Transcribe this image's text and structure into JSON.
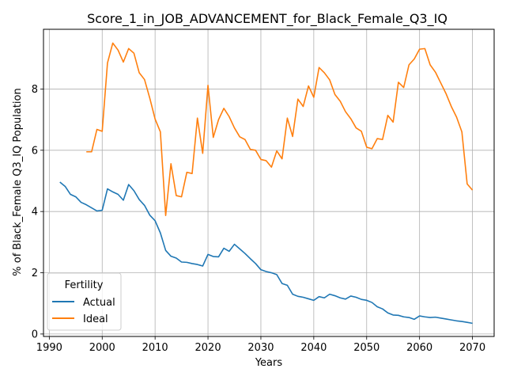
{
  "chart_data": {
    "type": "line",
    "title": "Score_1_in_JOB_ADVANCEMENT_for_Black_Female_Q3_IQ",
    "xlabel": "Years",
    "ylabel": "% of Black_Female Q3_IQ Population",
    "xlim": [
      1988.9,
      2074.1
    ],
    "ylim": [
      -0.08,
      9.95
    ],
    "xticks": [
      1990,
      2000,
      2010,
      2020,
      2030,
      2040,
      2050,
      2060,
      2070
    ],
    "yticks": [
      0,
      2,
      4,
      6,
      8
    ],
    "grid": true,
    "legend": {
      "title": "Fertility",
      "placement": "lower-left"
    },
    "colors": {
      "Actual": "#1f77b4",
      "Ideal": "#ff7f0e"
    },
    "series": [
      {
        "name": "Actual",
        "x": [
          1992,
          1993,
          1994,
          1995,
          1996,
          1997,
          1998,
          1999,
          2000,
          2001,
          2002,
          2003,
          2004,
          2005,
          2006,
          2007,
          2008,
          2009,
          2010,
          2011,
          2012,
          2013,
          2014,
          2015,
          2016,
          2017,
          2018,
          2019,
          2020,
          2021,
          2022,
          2023,
          2024,
          2025,
          2026,
          2027,
          2028,
          2029,
          2030,
          2031,
          2032,
          2033,
          2034,
          2035,
          2036,
          2037,
          2038,
          2039,
          2040,
          2041,
          2042,
          2043,
          2044,
          2045,
          2046,
          2047,
          2048,
          2049,
          2050,
          2051,
          2052,
          2053,
          2054,
          2055,
          2056,
          2057,
          2058,
          2059,
          2060,
          2061,
          2062,
          2063,
          2064,
          2065,
          2066,
          2067,
          2068,
          2069,
          2070
        ],
        "values": [
          4.96,
          4.82,
          4.56,
          4.48,
          4.3,
          4.22,
          4.12,
          4.02,
          4.04,
          4.74,
          4.64,
          4.56,
          4.37,
          4.88,
          4.68,
          4.39,
          4.2,
          3.88,
          3.7,
          3.3,
          2.73,
          2.54,
          2.48,
          2.35,
          2.34,
          2.3,
          2.27,
          2.22,
          2.6,
          2.53,
          2.52,
          2.8,
          2.7,
          2.93,
          2.78,
          2.63,
          2.46,
          2.3,
          2.1,
          2.04,
          2.0,
          1.94,
          1.65,
          1.59,
          1.3,
          1.23,
          1.2,
          1.15,
          1.1,
          1.22,
          1.18,
          1.3,
          1.25,
          1.18,
          1.14,
          1.24,
          1.2,
          1.13,
          1.1,
          1.03,
          0.89,
          0.82,
          0.69,
          0.62,
          0.61,
          0.56,
          0.54,
          0.48,
          0.59,
          0.56,
          0.54,
          0.55,
          0.52,
          0.49,
          0.46,
          0.43,
          0.41,
          0.38,
          0.35
        ]
      },
      {
        "name": "Ideal",
        "x": [
          1997,
          1998,
          1999,
          2000,
          2001,
          2002,
          2003,
          2004,
          2005,
          2006,
          2007,
          2008,
          2009,
          2010,
          2011,
          2012,
          2013,
          2014,
          2015,
          2016,
          2017,
          2018,
          2019,
          2020,
          2021,
          2022,
          2023,
          2024,
          2025,
          2026,
          2027,
          2028,
          2029,
          2030,
          2031,
          2032,
          2033,
          2034,
          2035,
          2036,
          2037,
          2038,
          2039,
          2040,
          2041,
          2042,
          2043,
          2044,
          2045,
          2046,
          2047,
          2048,
          2049,
          2050,
          2051,
          2052,
          2053,
          2054,
          2055,
          2056,
          2057,
          2058,
          2059,
          2060,
          2061,
          2062,
          2063,
          2064,
          2065,
          2066,
          2067,
          2068,
          2069,
          2070
        ],
        "values": [
          5.95,
          5.95,
          6.68,
          6.62,
          8.85,
          9.5,
          9.27,
          8.88,
          9.32,
          9.17,
          8.53,
          8.31,
          7.7,
          7.02,
          6.6,
          3.87,
          5.56,
          4.52,
          4.48,
          5.28,
          5.24,
          7.05,
          5.9,
          8.12,
          6.42,
          7.0,
          7.37,
          7.1,
          6.73,
          6.44,
          6.35,
          6.03,
          6.0,
          5.7,
          5.66,
          5.45,
          5.98,
          5.72,
          7.05,
          6.45,
          7.67,
          7.43,
          8.1,
          7.73,
          8.7,
          8.53,
          8.3,
          7.82,
          7.6,
          7.26,
          7.03,
          6.73,
          6.62,
          6.1,
          6.05,
          6.38,
          6.35,
          7.14,
          6.92,
          8.22,
          8.05,
          8.79,
          8.98,
          9.3,
          9.32,
          8.79,
          8.55,
          8.2,
          7.85,
          7.43,
          7.08,
          6.6,
          4.9,
          4.7
        ]
      }
    ]
  }
}
